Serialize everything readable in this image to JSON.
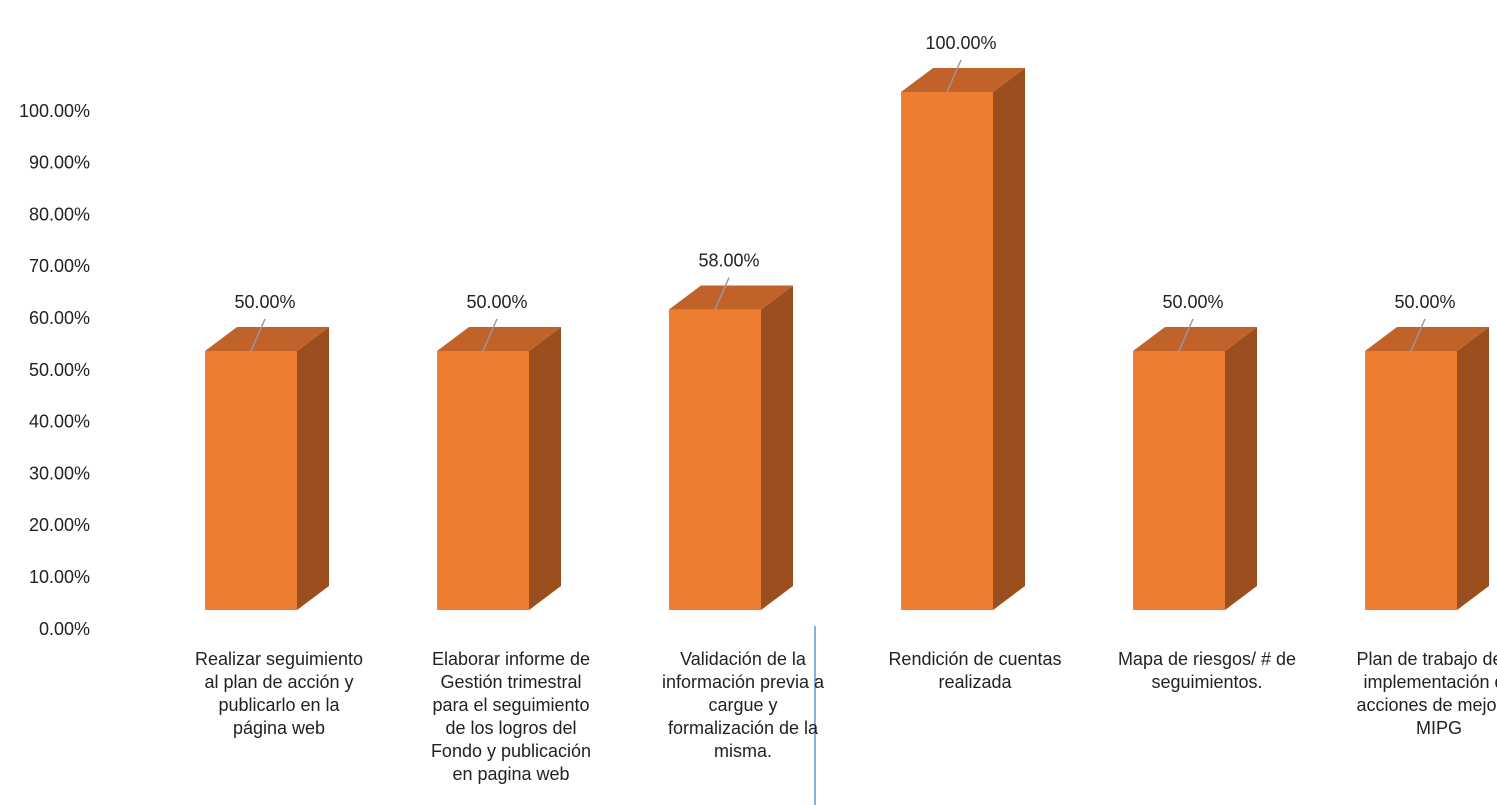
{
  "chart_data": {
    "type": "bar3d",
    "categories": [
      "Realizar seguimiento al plan de acción y publicarlo en la página web",
      "Elaborar  informe de Gestión trimestral para el seguimiento de los logros del Fondo y publicación en pagina web",
      "Validación de la información previa a cargue y formalización de la misma.",
      "Rendición de cuentas realizada",
      "Mapa de riesgos/ # de seguimientos.",
      "Plan de trabajo de la implementación de acciones de mejoras MIPG"
    ],
    "values": [
      50,
      50,
      58,
      100,
      50,
      50
    ],
    "value_labels": [
      "50.00%",
      "50.00%",
      "58.00%",
      "100.00%",
      "50.00%",
      "50.00%"
    ],
    "color": "#ed7d31",
    "ylim": [
      0,
      100
    ],
    "yticks": [
      {
        "value": 0,
        "label": "0.00%"
      },
      {
        "value": 10,
        "label": "10.00%"
      },
      {
        "value": 20,
        "label": "20.00%"
      },
      {
        "value": 30,
        "label": "30.00%"
      },
      {
        "value": 40,
        "label": "40.00%"
      },
      {
        "value": 50,
        "label": "50.00%"
      },
      {
        "value": 60,
        "label": "60.00%"
      },
      {
        "value": 70,
        "label": "70.00%"
      },
      {
        "value": 80,
        "label": "80.00%"
      },
      {
        "value": 90,
        "label": "90.00%"
      },
      {
        "value": 100,
        "label": "100.00%"
      }
    ]
  }
}
